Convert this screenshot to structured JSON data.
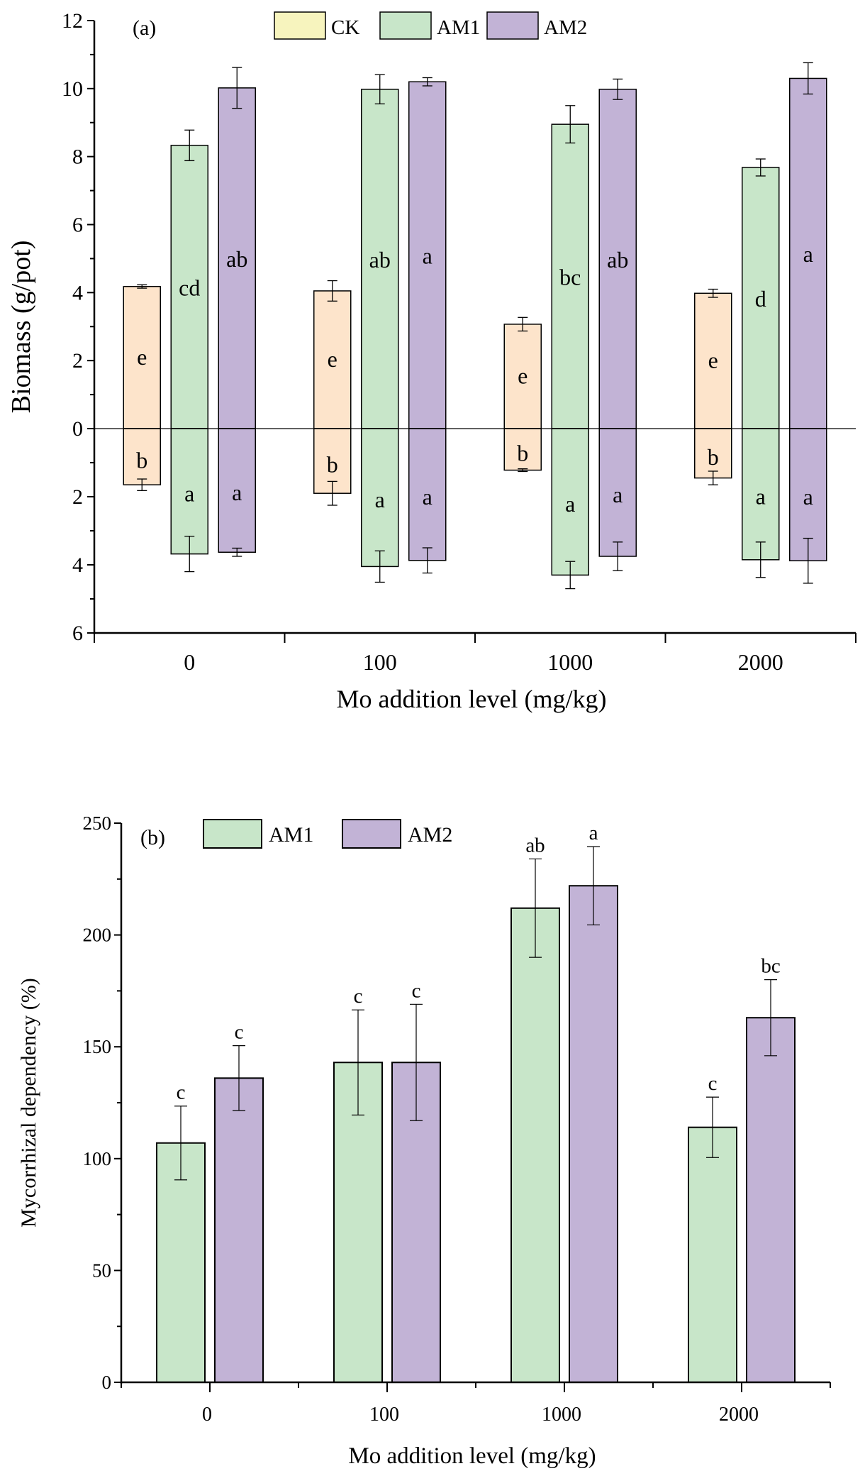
{
  "chart_data": [
    {
      "type": "bar",
      "panel_label": "(a)",
      "title": "",
      "xlabel": "Mo addition level (mg/kg)",
      "ylabel": "Biomass (g/pot)",
      "categories": [
        "0",
        "100",
        "1000",
        "2000"
      ],
      "ylim_upper": [
        0,
        12
      ],
      "ylim_lower": [
        0,
        6
      ],
      "yticks_upper": [
        "0",
        "2",
        "4",
        "6",
        "8",
        "10",
        "12"
      ],
      "yticks_lower": [
        "2",
        "4",
        "6"
      ],
      "legend": {
        "placement": "top-center",
        "entries": [
          "CK",
          "AM1",
          "AM2"
        ]
      },
      "grid": false,
      "series": [
        {
          "name": "CK",
          "color": "#fde4cb",
          "legend_color": "#f7f4be",
          "upper": [
            4.18,
            4.05,
            3.07,
            3.98
          ],
          "upper_err": [
            0.05,
            0.3,
            0.2,
            0.12
          ],
          "upper_letters": [
            "e",
            "e",
            "e",
            "e"
          ],
          "lower": [
            1.65,
            1.9,
            1.22,
            1.45
          ],
          "lower_err": [
            0.17,
            0.35,
            0.04,
            0.2
          ],
          "lower_letters": [
            "b",
            "b",
            "b",
            "b"
          ]
        },
        {
          "name": "AM1",
          "color": "#c8e6c9",
          "legend_color": "#c8e6c9",
          "upper": [
            8.33,
            9.98,
            8.95,
            7.68
          ],
          "upper_err": [
            0.45,
            0.43,
            0.55,
            0.25
          ],
          "upper_letters": [
            "cd",
            "ab",
            "bc",
            "d"
          ],
          "lower": [
            3.68,
            4.05,
            4.3,
            3.85
          ],
          "lower_err": [
            0.52,
            0.46,
            0.4,
            0.52
          ],
          "lower_letters": [
            "a",
            "a",
            "a",
            "a"
          ]
        },
        {
          "name": "AM2",
          "color": "#c2b3d6",
          "legend_color": "#c2b3d6",
          "upper": [
            10.02,
            10.2,
            9.98,
            10.3
          ],
          "upper_err": [
            0.6,
            0.12,
            0.3,
            0.46
          ],
          "upper_letters": [
            "ab",
            "a",
            "ab",
            "a"
          ],
          "lower": [
            3.63,
            3.87,
            3.75,
            3.88
          ],
          "lower_err": [
            0.12,
            0.37,
            0.42,
            0.66
          ],
          "lower_letters": [
            "a",
            "a",
            "a",
            "a"
          ]
        }
      ]
    },
    {
      "type": "bar",
      "panel_label": "(b)",
      "title": "",
      "xlabel": "Mo addition level (mg/kg)",
      "ylabel": "Mycorrhizal dependency (%)",
      "categories": [
        "0",
        "100",
        "1000",
        "2000"
      ],
      "ylim": [
        0,
        250
      ],
      "yticks": [
        "0",
        "50",
        "100",
        "150",
        "200",
        "250"
      ],
      "legend": {
        "placement": "top-left",
        "entries": [
          "AM1",
          "AM2"
        ]
      },
      "grid": false,
      "series": [
        {
          "name": "AM1",
          "color": "#c8e6c9",
          "values": [
            107,
            143,
            212,
            114
          ],
          "err": [
            16.5,
            23.5,
            22,
            13.5
          ],
          "letters": [
            "c",
            "c",
            "ab",
            "c"
          ]
        },
        {
          "name": "AM2",
          "color": "#c2b3d6",
          "values": [
            136,
            143,
            222,
            163
          ],
          "err": [
            14.5,
            26,
            17.5,
            17
          ],
          "letters": [
            "c",
            "c",
            "a",
            "bc"
          ]
        }
      ]
    }
  ]
}
